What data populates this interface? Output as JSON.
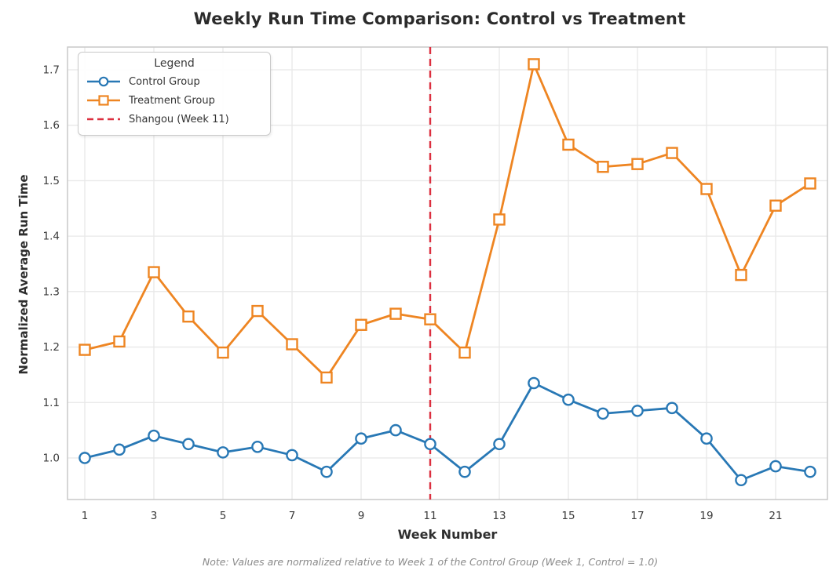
{
  "figure": {
    "title": "Weekly Run Time Comparison: Control vs Treatment",
    "footnote": "Note: Values are normalized relative to Week 1 of the Control Group (Week 1, Control = 1.0)"
  },
  "legend": {
    "title": "Legend",
    "entries": [
      {
        "label": "Control Group",
        "marker": "circle",
        "color": "#2878b5"
      },
      {
        "label": "Treatment Group",
        "marker": "square",
        "color": "#ee8522"
      },
      {
        "label": "Shangou (Week 11)",
        "marker": "dashed-line",
        "color": "#dc2f3f"
      }
    ]
  },
  "chart_data": {
    "type": "line",
    "title": "Weekly Run Time Comparison: Control vs Treatment",
    "xlabel": "Week Number",
    "ylabel": "Normalized Average Run Time",
    "x": [
      1,
      2,
      3,
      4,
      5,
      6,
      7,
      8,
      9,
      10,
      11,
      12,
      13,
      14,
      15,
      16,
      17,
      18,
      19,
      20,
      21,
      22
    ],
    "series": [
      {
        "name": "Control Group",
        "color": "#2878b5",
        "marker": "circle",
        "values": [
          1.0,
          1.015,
          1.04,
          1.025,
          1.01,
          1.02,
          1.005,
          0.975,
          1.035,
          1.05,
          1.025,
          0.975,
          1.025,
          1.135,
          1.105,
          1.08,
          1.085,
          1.09,
          1.035,
          0.96,
          0.985,
          0.975
        ]
      },
      {
        "name": "Treatment Group",
        "color": "#ee8522",
        "marker": "square",
        "values": [
          1.195,
          1.21,
          1.335,
          1.255,
          1.19,
          1.265,
          1.205,
          1.145,
          1.24,
          1.26,
          1.25,
          1.19,
          1.43,
          1.71,
          1.565,
          1.525,
          1.53,
          1.55,
          1.485,
          1.33,
          1.455,
          1.495
        ]
      }
    ],
    "vline": {
      "x": 11,
      "label": "Shangou (Week 11)",
      "color": "#dc2f3f",
      "style": "dashed"
    },
    "xticks": [
      1,
      3,
      5,
      7,
      9,
      11,
      13,
      15,
      17,
      19,
      21
    ],
    "yticks": [
      1.0,
      1.1,
      1.2,
      1.3,
      1.4,
      1.5,
      1.6,
      1.7
    ],
    "xlim": [
      0.5,
      22.5
    ],
    "ylim": [
      0.925,
      1.741
    ],
    "grid": true,
    "legend_position": "upper left",
    "grid_color": "#e8e8e8",
    "spine_color": "#c9c9c9",
    "tick_label_color": "#3b3b3b",
    "note": "Note: Values are normalized relative to Week 1 of the Control Group (Week 1, Control = 1.0)"
  }
}
